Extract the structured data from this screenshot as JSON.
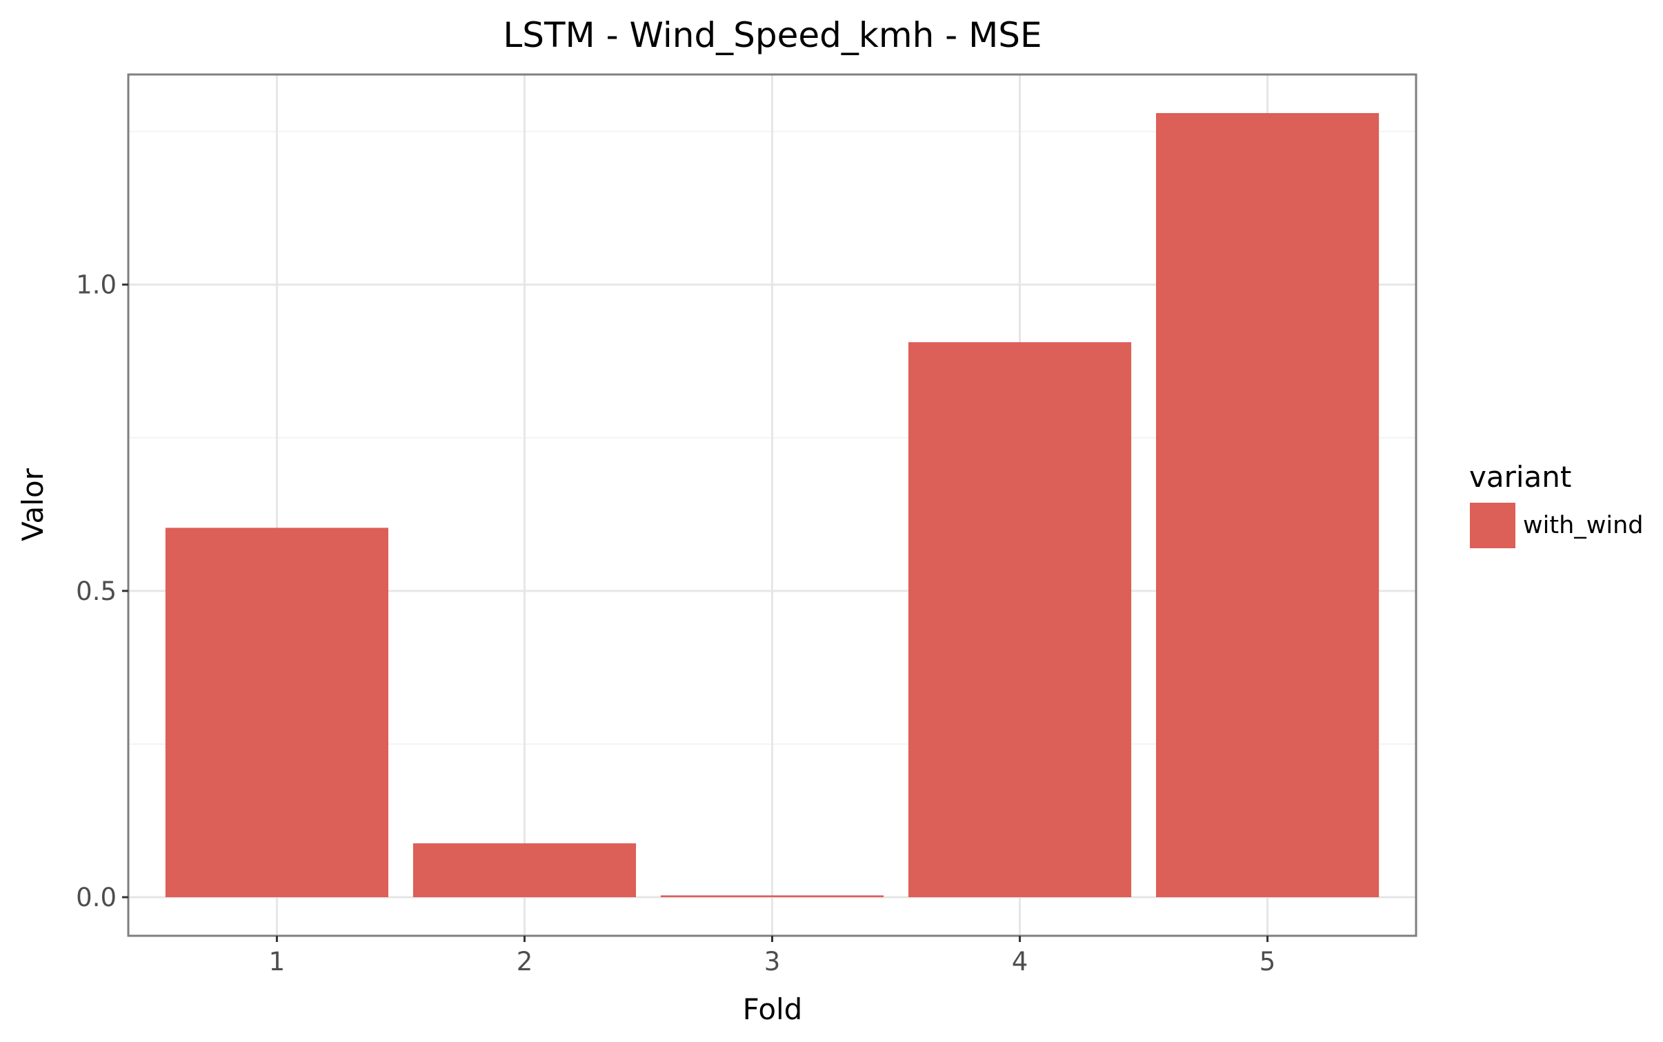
{
  "chart_data": {
    "type": "bar",
    "title": "LSTM - Wind_Speed_kmh - MSE",
    "xlabel": "Fold",
    "ylabel": "Valor",
    "categories": [
      "1",
      "2",
      "3",
      "4",
      "5"
    ],
    "series": [
      {
        "name": "with_wind",
        "values": [
          0.603,
          0.088,
          0.003,
          0.906,
          1.28
        ],
        "color": "#dc5f58"
      }
    ],
    "ylim": [
      -0.063,
      1.343
    ],
    "yticks": [
      0.0,
      0.5,
      1.0
    ],
    "ytick_labels": [
      "0.0",
      "0.5",
      "1.0"
    ],
    "grid": true,
    "legend": {
      "title": "variant",
      "position": "right"
    },
    "colors": {
      "panel_border": "#7f7f7f",
      "grid": "#e6e6e6",
      "grid_minor": "#f4f4f4",
      "bar": "#dc5f58"
    }
  }
}
